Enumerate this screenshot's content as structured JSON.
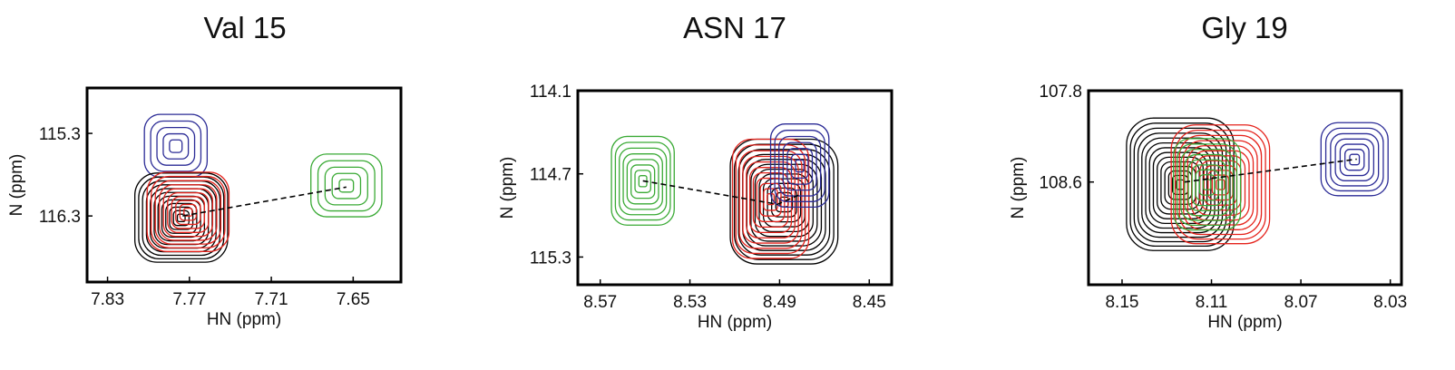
{
  "chart_data": [
    {
      "type": "scatter",
      "title": "Val 15",
      "xlabel": "HN (ppm)",
      "ylabel": "N (ppm)",
      "xticks": [
        7.83,
        7.77,
        7.71,
        7.65
      ],
      "yticks": [
        115.3,
        116.3
      ],
      "xlim": [
        7.845,
        7.615
      ],
      "ylim": [
        114.75,
        117.1
      ],
      "dashed_path": [
        [
          7.775,
          116.3
        ],
        [
          7.655,
          115.95
        ]
      ],
      "peaks": [
        {
          "color": "#2b2b96",
          "x": 7.78,
          "y": 115.45,
          "rx": 0.023,
          "ry": 0.38,
          "levels": 5
        },
        {
          "color": "#000000",
          "x": 7.776,
          "y": 116.32,
          "rx": 0.034,
          "ry": 0.54,
          "levels": 12
        },
        {
          "color": "#e5231c",
          "x": 7.771,
          "y": 116.25,
          "rx": 0.03,
          "ry": 0.48,
          "levels": 10
        },
        {
          "color": "#3aaa35",
          "x": 7.655,
          "y": 115.93,
          "rx": 0.026,
          "ry": 0.38,
          "levels": 5
        }
      ]
    },
    {
      "type": "scatter",
      "title": "ASN 17",
      "xlabel": "HN (ppm)",
      "ylabel": "N (ppm)",
      "xticks": [
        8.57,
        8.53,
        8.49,
        8.45
      ],
      "yticks": [
        114.1,
        114.7,
        115.3
      ],
      "xlim": [
        8.58,
        8.44
      ],
      "ylim": [
        114.1,
        115.5
      ],
      "dashed_path": [
        [
          8.551,
          114.75
        ],
        [
          8.491,
          114.92
        ],
        [
          8.481,
          114.85
        ]
      ],
      "peaks": [
        {
          "color": "#000000",
          "x": 8.488,
          "y": 114.9,
          "rx": 0.024,
          "ry": 0.45,
          "levels": 13
        },
        {
          "color": "#e5231c",
          "x": 8.494,
          "y": 114.88,
          "rx": 0.017,
          "ry": 0.43,
          "levels": 11
        },
        {
          "color": "#2b2b96",
          "x": 8.481,
          "y": 114.64,
          "rx": 0.013,
          "ry": 0.3,
          "levels": 7
        },
        {
          "color": "#3aaa35",
          "x": 8.551,
          "y": 114.75,
          "rx": 0.014,
          "ry": 0.32,
          "levels": 8
        }
      ]
    },
    {
      "type": "scatter",
      "title": "Gly 19",
      "xlabel": "HN (ppm)",
      "ylabel": "N (ppm)",
      "xticks": [
        8.15,
        8.11,
        8.07,
        8.03
      ],
      "yticks": [
        107.8,
        108.6
      ],
      "xlim": [
        8.165,
        8.025
      ],
      "ylim": [
        107.8,
        109.5
      ],
      "dashed_path": [
        [
          8.122,
          108.6
        ],
        [
          8.045,
          108.4
        ]
      ],
      "peaks": [
        {
          "color": "#000000",
          "x": 8.124,
          "y": 108.62,
          "rx": 0.024,
          "ry": 0.58,
          "levels": 14
        },
        {
          "color": "#e5231c",
          "x": 8.106,
          "y": 108.62,
          "rx": 0.022,
          "ry": 0.52,
          "levels": 12
        },
        {
          "color": "#3aaa35",
          "x": 8.112,
          "y": 108.62,
          "rx": 0.015,
          "ry": 0.4,
          "levels": 9
        },
        {
          "color": "#2b2b96",
          "x": 8.046,
          "y": 108.4,
          "rx": 0.015,
          "ry": 0.32,
          "levels": 7
        }
      ]
    }
  ]
}
